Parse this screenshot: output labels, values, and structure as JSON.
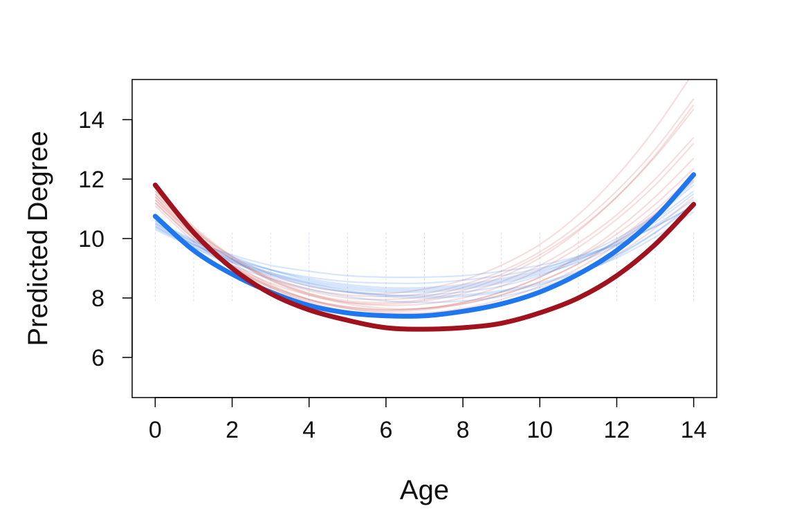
{
  "chart_data": {
    "type": "line",
    "title": "",
    "xlabel": "Age",
    "ylabel": "Predicted Degree",
    "xlim": [
      -0.6,
      14.6
    ],
    "ylim": [
      4.65,
      15.35
    ],
    "x_ticks": [
      0,
      2,
      4,
      6,
      8,
      10,
      12,
      14
    ],
    "y_ticks": [
      6,
      8,
      10,
      12,
      14
    ],
    "grid": false,
    "legend": "none",
    "series": [
      {
        "color": "#1f77f0",
        "x": [
          0,
          1,
          2,
          3,
          4,
          5,
          6,
          7,
          8,
          9,
          10,
          11,
          12,
          13,
          14
        ],
        "values": [
          10.75,
          9.6,
          8.8,
          8.2,
          7.75,
          7.5,
          7.4,
          7.4,
          7.55,
          7.8,
          8.2,
          8.8,
          9.6,
          10.7,
          12.15
        ]
      },
      {
        "color": "#a0121e",
        "x": [
          0,
          1,
          2,
          3,
          4,
          5,
          6,
          7,
          8,
          9,
          10,
          11,
          12,
          13,
          14
        ],
        "values": [
          11.8,
          10.2,
          9.0,
          8.15,
          7.6,
          7.25,
          7.0,
          6.95,
          7.0,
          7.15,
          7.5,
          8.0,
          8.75,
          9.8,
          11.15
        ]
      }
    ],
    "background_curves": {
      "blue": {
        "color": "#4a8cf0",
        "series": [
          [
            10.5,
            9.9,
            9.45,
            9.1,
            8.9,
            8.75,
            8.7,
            8.7,
            8.75,
            8.9,
            9.1,
            9.4,
            9.8,
            10.4,
            11.1
          ],
          [
            10.4,
            9.8,
            9.3,
            8.95,
            8.7,
            8.55,
            8.5,
            8.5,
            8.6,
            8.75,
            9.0,
            9.35,
            9.85,
            10.55,
            11.5
          ],
          [
            10.6,
            9.9,
            9.35,
            8.95,
            8.65,
            8.45,
            8.35,
            8.35,
            8.45,
            8.65,
            8.95,
            9.4,
            10.0,
            10.8,
            11.9
          ],
          [
            10.35,
            9.75,
            9.25,
            8.85,
            8.55,
            8.35,
            8.25,
            8.25,
            8.35,
            8.55,
            8.85,
            9.3,
            9.9,
            10.65,
            11.6
          ],
          [
            10.5,
            9.8,
            9.2,
            8.75,
            8.4,
            8.2,
            8.1,
            8.1,
            8.2,
            8.4,
            8.75,
            9.25,
            9.9,
            10.75,
            11.8
          ],
          [
            10.3,
            9.7,
            9.2,
            8.8,
            8.5,
            8.3,
            8.2,
            8.2,
            8.3,
            8.5,
            8.8,
            9.2,
            9.75,
            10.45,
            11.3
          ],
          [
            10.55,
            9.85,
            9.3,
            8.85,
            8.5,
            8.25,
            8.1,
            8.05,
            8.1,
            8.25,
            8.5,
            8.9,
            9.45,
            10.2,
            11.1
          ],
          [
            10.45,
            9.8,
            9.25,
            8.8,
            8.45,
            8.2,
            8.05,
            8.0,
            8.05,
            8.2,
            8.45,
            8.85,
            9.35,
            10.05,
            10.9
          ],
          [
            10.4,
            9.7,
            9.1,
            8.65,
            8.3,
            8.05,
            7.9,
            7.85,
            7.9,
            8.05,
            8.35,
            8.8,
            9.4,
            10.2,
            11.2
          ],
          [
            10.6,
            9.95,
            9.4,
            8.95,
            8.6,
            8.4,
            8.3,
            8.3,
            8.4,
            8.6,
            8.9,
            9.3,
            9.8,
            10.4,
            11.1
          ]
        ]
      },
      "red": {
        "color": "#c0302e",
        "series": [
          [
            11.5,
            10.3,
            9.4,
            8.8,
            8.4,
            8.2,
            8.15,
            8.3,
            8.6,
            9.1,
            9.8,
            10.8,
            12.1,
            13.7,
            15.6
          ],
          [
            11.3,
            10.15,
            9.3,
            8.7,
            8.3,
            8.1,
            8.05,
            8.15,
            8.45,
            8.9,
            9.55,
            10.45,
            11.6,
            13.0,
            14.7
          ],
          [
            11.6,
            10.3,
            9.3,
            8.6,
            8.15,
            7.9,
            7.85,
            7.95,
            8.25,
            8.7,
            9.35,
            10.25,
            11.4,
            12.8,
            14.5
          ],
          [
            11.2,
            10.0,
            9.1,
            8.5,
            8.1,
            7.85,
            7.8,
            7.9,
            8.15,
            8.55,
            9.1,
            9.85,
            10.8,
            12.0,
            13.4
          ],
          [
            11.4,
            10.1,
            9.1,
            8.4,
            7.95,
            7.7,
            7.6,
            7.65,
            7.85,
            8.2,
            8.7,
            9.4,
            10.3,
            11.4,
            12.7
          ],
          [
            11.7,
            10.4,
            9.4,
            8.65,
            8.15,
            7.85,
            7.75,
            7.8,
            8.0,
            8.4,
            8.95,
            9.7,
            10.65,
            11.8,
            13.2
          ],
          [
            11.1,
            9.9,
            9.0,
            8.35,
            7.9,
            7.65,
            7.55,
            7.6,
            7.8,
            8.1,
            8.55,
            9.15,
            9.9,
            10.85,
            11.95
          ],
          [
            11.5,
            10.2,
            9.2,
            8.45,
            7.95,
            7.65,
            7.5,
            7.5,
            7.65,
            7.95,
            8.4,
            9.0,
            9.8,
            10.8,
            12.0
          ],
          [
            11.3,
            10.05,
            9.05,
            8.35,
            7.85,
            7.55,
            7.4,
            7.4,
            7.55,
            7.8,
            8.2,
            8.75,
            9.45,
            10.35,
            11.4
          ],
          [
            11.6,
            10.35,
            9.35,
            8.6,
            8.1,
            7.8,
            7.65,
            7.65,
            7.8,
            8.1,
            8.55,
            9.15,
            9.95,
            10.95,
            12.15
          ],
          [
            11.4,
            10.2,
            9.3,
            8.65,
            8.25,
            8.0,
            7.95,
            8.05,
            8.35,
            8.8,
            9.45,
            10.3,
            11.4,
            12.75,
            14.35
          ],
          [
            11.2,
            10.0,
            9.05,
            8.4,
            7.95,
            7.7,
            7.6,
            7.65,
            7.85,
            8.2,
            8.7,
            9.35,
            10.15,
            11.15,
            12.35
          ]
        ]
      }
    }
  }
}
